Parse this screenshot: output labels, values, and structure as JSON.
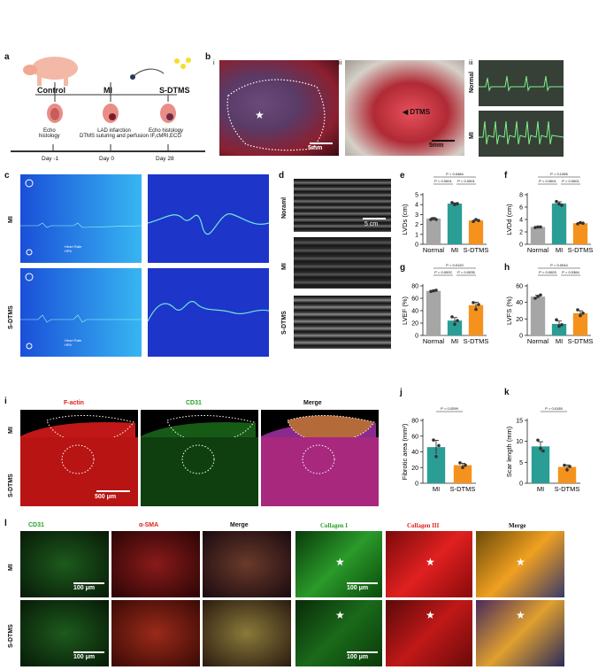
{
  "panel_a": {
    "letter": "a",
    "groups": [
      "Control",
      "MI",
      "S-DTMS"
    ],
    "notes": [
      "Echo\nhistology",
      "LAD infarction\nDTMS suturing and perfusion",
      "Echo histology\nIF,cMRI,ECG"
    ],
    "days": [
      "Day -1",
      "Day 0",
      "Day 28"
    ]
  },
  "panel_b": {
    "letter": "b",
    "sub": [
      "i",
      "ii",
      "iii"
    ],
    "scale": "5mm",
    "dtms_label": "DTMS",
    "ecg_rows": [
      "Normal",
      "MI"
    ]
  },
  "panel_c": {
    "letter": "c",
    "rows": [
      "MI",
      "S-DTMS"
    ],
    "hr_text": "Heart Rate\nHRV"
  },
  "panel_d": {
    "letter": "d",
    "rows": [
      "Noraml",
      "MI",
      "S-DTMS"
    ],
    "scale": "5 cm"
  },
  "panel_i": {
    "letter": "i",
    "cols": [
      "F-actin",
      "CD31",
      "Merge"
    ],
    "rows": [
      "MI",
      "S-DTMS"
    ],
    "scale": "500 μm"
  },
  "panel_l": {
    "letter": "l",
    "cols": [
      "CD31",
      "α-SMA",
      "Merge",
      "Collagen I",
      "Collagen III",
      "Merge"
    ],
    "rows": [
      "MI",
      "S-DTMS"
    ],
    "scale": "100 μm"
  },
  "colors": {
    "normal": "#a6a6a6",
    "mi": "#2a9d95",
    "sdtms": "#f5921e"
  },
  "chart_data": [
    {
      "id": "e",
      "type": "bar",
      "categories": [
        "Normal",
        "MI",
        "S-DTMS"
      ],
      "values": [
        2.6,
        4.1,
        2.4
      ],
      "points": [
        [
          2.5,
          2.6,
          2.5
        ],
        [
          4.2,
          4.0,
          4.1
        ],
        [
          2.3,
          2.5,
          2.4
        ]
      ],
      "ylabel": "LVDs (cm)",
      "ylim": [
        0,
        5
      ],
      "yticks": [
        0,
        1,
        2,
        3,
        4,
        5
      ],
      "pvals": [
        "P = 0.0484",
        "P < 0.0001",
        "P < 0.0001"
      ]
    },
    {
      "id": "f",
      "type": "bar",
      "categories": [
        "Normal",
        "MI",
        "S-DTMS"
      ],
      "values": [
        2.8,
        6.6,
        3.4
      ],
      "points": [
        [
          2.7,
          2.8,
          2.8
        ],
        [
          6.9,
          6.5,
          6.3
        ],
        [
          3.3,
          3.5,
          3.4
        ]
      ],
      "ylabel": "LVDd (cm)",
      "ylim": [
        0,
        8
      ],
      "yticks": [
        0,
        2,
        4,
        6,
        8
      ],
      "pvals": [
        "P = 0.1265",
        "P < 0.0001",
        "P < 0.0001"
      ]
    },
    {
      "id": "g",
      "type": "bar",
      "categories": [
        "Normal",
        "MI",
        "S-DTMS"
      ],
      "values": [
        72,
        24,
        49
      ],
      "points": [
        [
          71,
          72,
          73
        ],
        [
          30,
          18,
          24
        ],
        [
          53,
          42,
          50
        ]
      ],
      "ylabel": "LVEF (%)",
      "ylim": [
        0,
        80
      ],
      "yticks": [
        0,
        20,
        40,
        60,
        80
      ],
      "pvals": [
        "P = 0.0120",
        "P = 0.0002",
        "P = 0.0035"
      ]
    },
    {
      "id": "h",
      "type": "bar",
      "categories": [
        "Normal",
        "MI",
        "S-DTMS"
      ],
      "values": [
        47,
        14,
        27
      ],
      "points": [
        [
          45,
          47,
          49
        ],
        [
          19,
          11,
          13
        ],
        [
          31,
          24,
          27
        ]
      ],
      "ylabel": "LVFS (%)",
      "ylim": [
        0,
        60
      ],
      "yticks": [
        0,
        20,
        40,
        60
      ],
      "pvals": [
        "P = 0.0044",
        "P = 0.0003",
        "P = 0.0364"
      ]
    },
    {
      "id": "j",
      "type": "bar",
      "categories": [
        "MI",
        "S-DTMS"
      ],
      "values": [
        46,
        23
      ],
      "points": [
        [
          55,
          34,
          48
        ],
        [
          26,
          20,
          23
        ]
      ],
      "ylabel": "Fibrotic area (mm²)",
      "ylim": [
        0,
        80
      ],
      "yticks": [
        0,
        20,
        40,
        60,
        80
      ],
      "pvals": [
        "P = 0.0299"
      ]
    },
    {
      "id": "k",
      "type": "bar",
      "categories": [
        "MI",
        "S-DTMS"
      ],
      "values": [
        8.8,
        3.9
      ],
      "points": [
        [
          10.3,
          8.3,
          7.7
        ],
        [
          4.3,
          3.2,
          4.0
        ]
      ],
      "ylabel": "Scar length (mm)",
      "ylim": [
        0,
        15
      ],
      "yticks": [
        0,
        5,
        10,
        15
      ],
      "pvals": [
        "P = 0.0155"
      ]
    }
  ]
}
